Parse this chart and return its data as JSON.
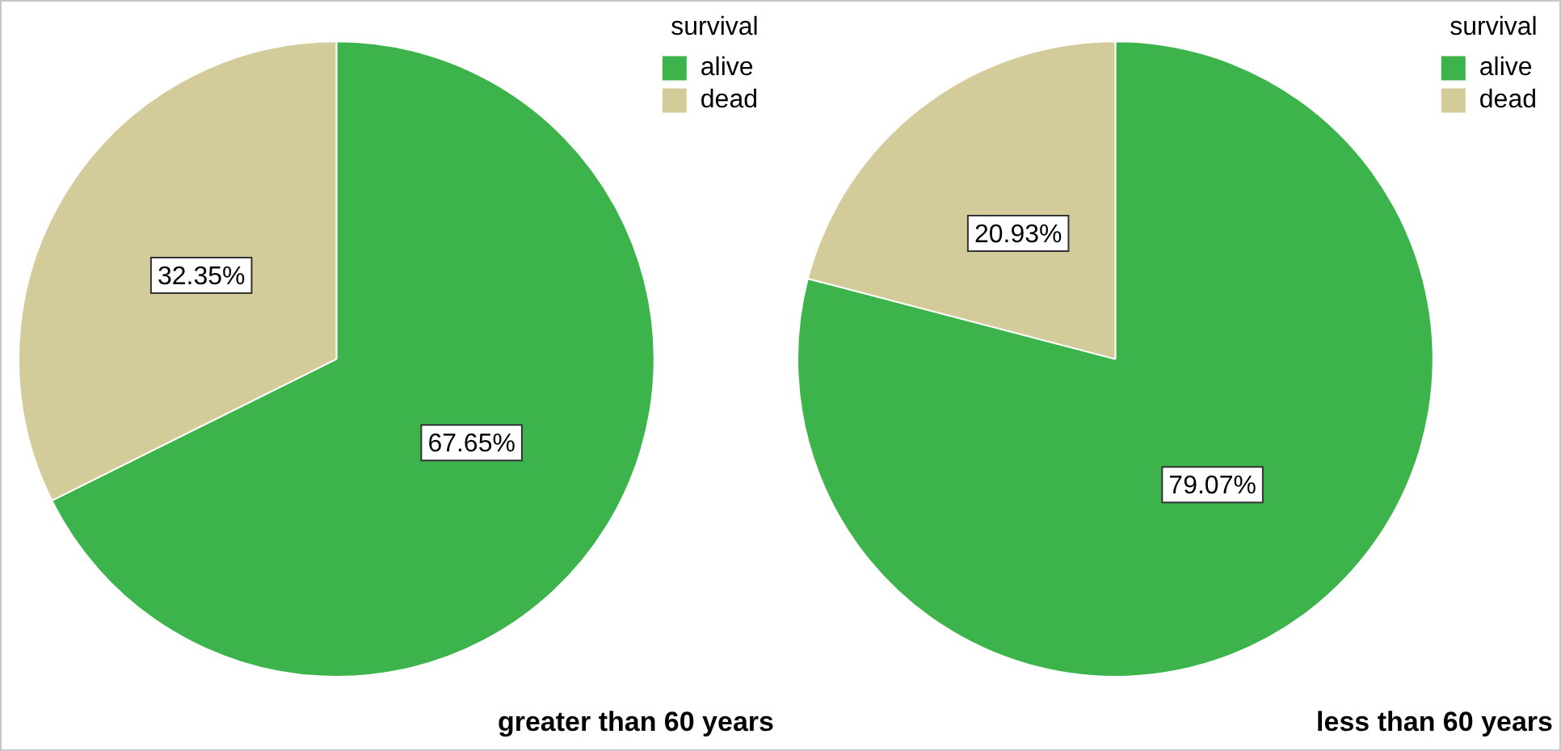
{
  "chart_data": [
    {
      "type": "pie",
      "title": "greater than 60 years",
      "legend_title": "survival",
      "legend": "top right",
      "categories": [
        "alive",
        "dead"
      ],
      "values": [
        67.65,
        32.35
      ],
      "colors": [
        "#3cb44b",
        "#d4cb9b"
      ],
      "value_labels": [
        "67.65%",
        "32.35%"
      ]
    },
    {
      "type": "pie",
      "title": "less than 60 years",
      "legend_title": "survival",
      "legend": "top right",
      "categories": [
        "alive",
        "dead"
      ],
      "values": [
        79.07,
        20.93
      ],
      "colors": [
        "#3cb44b",
        "#d4cb9b"
      ],
      "value_labels": [
        "79.07%",
        "20.93%"
      ]
    }
  ]
}
